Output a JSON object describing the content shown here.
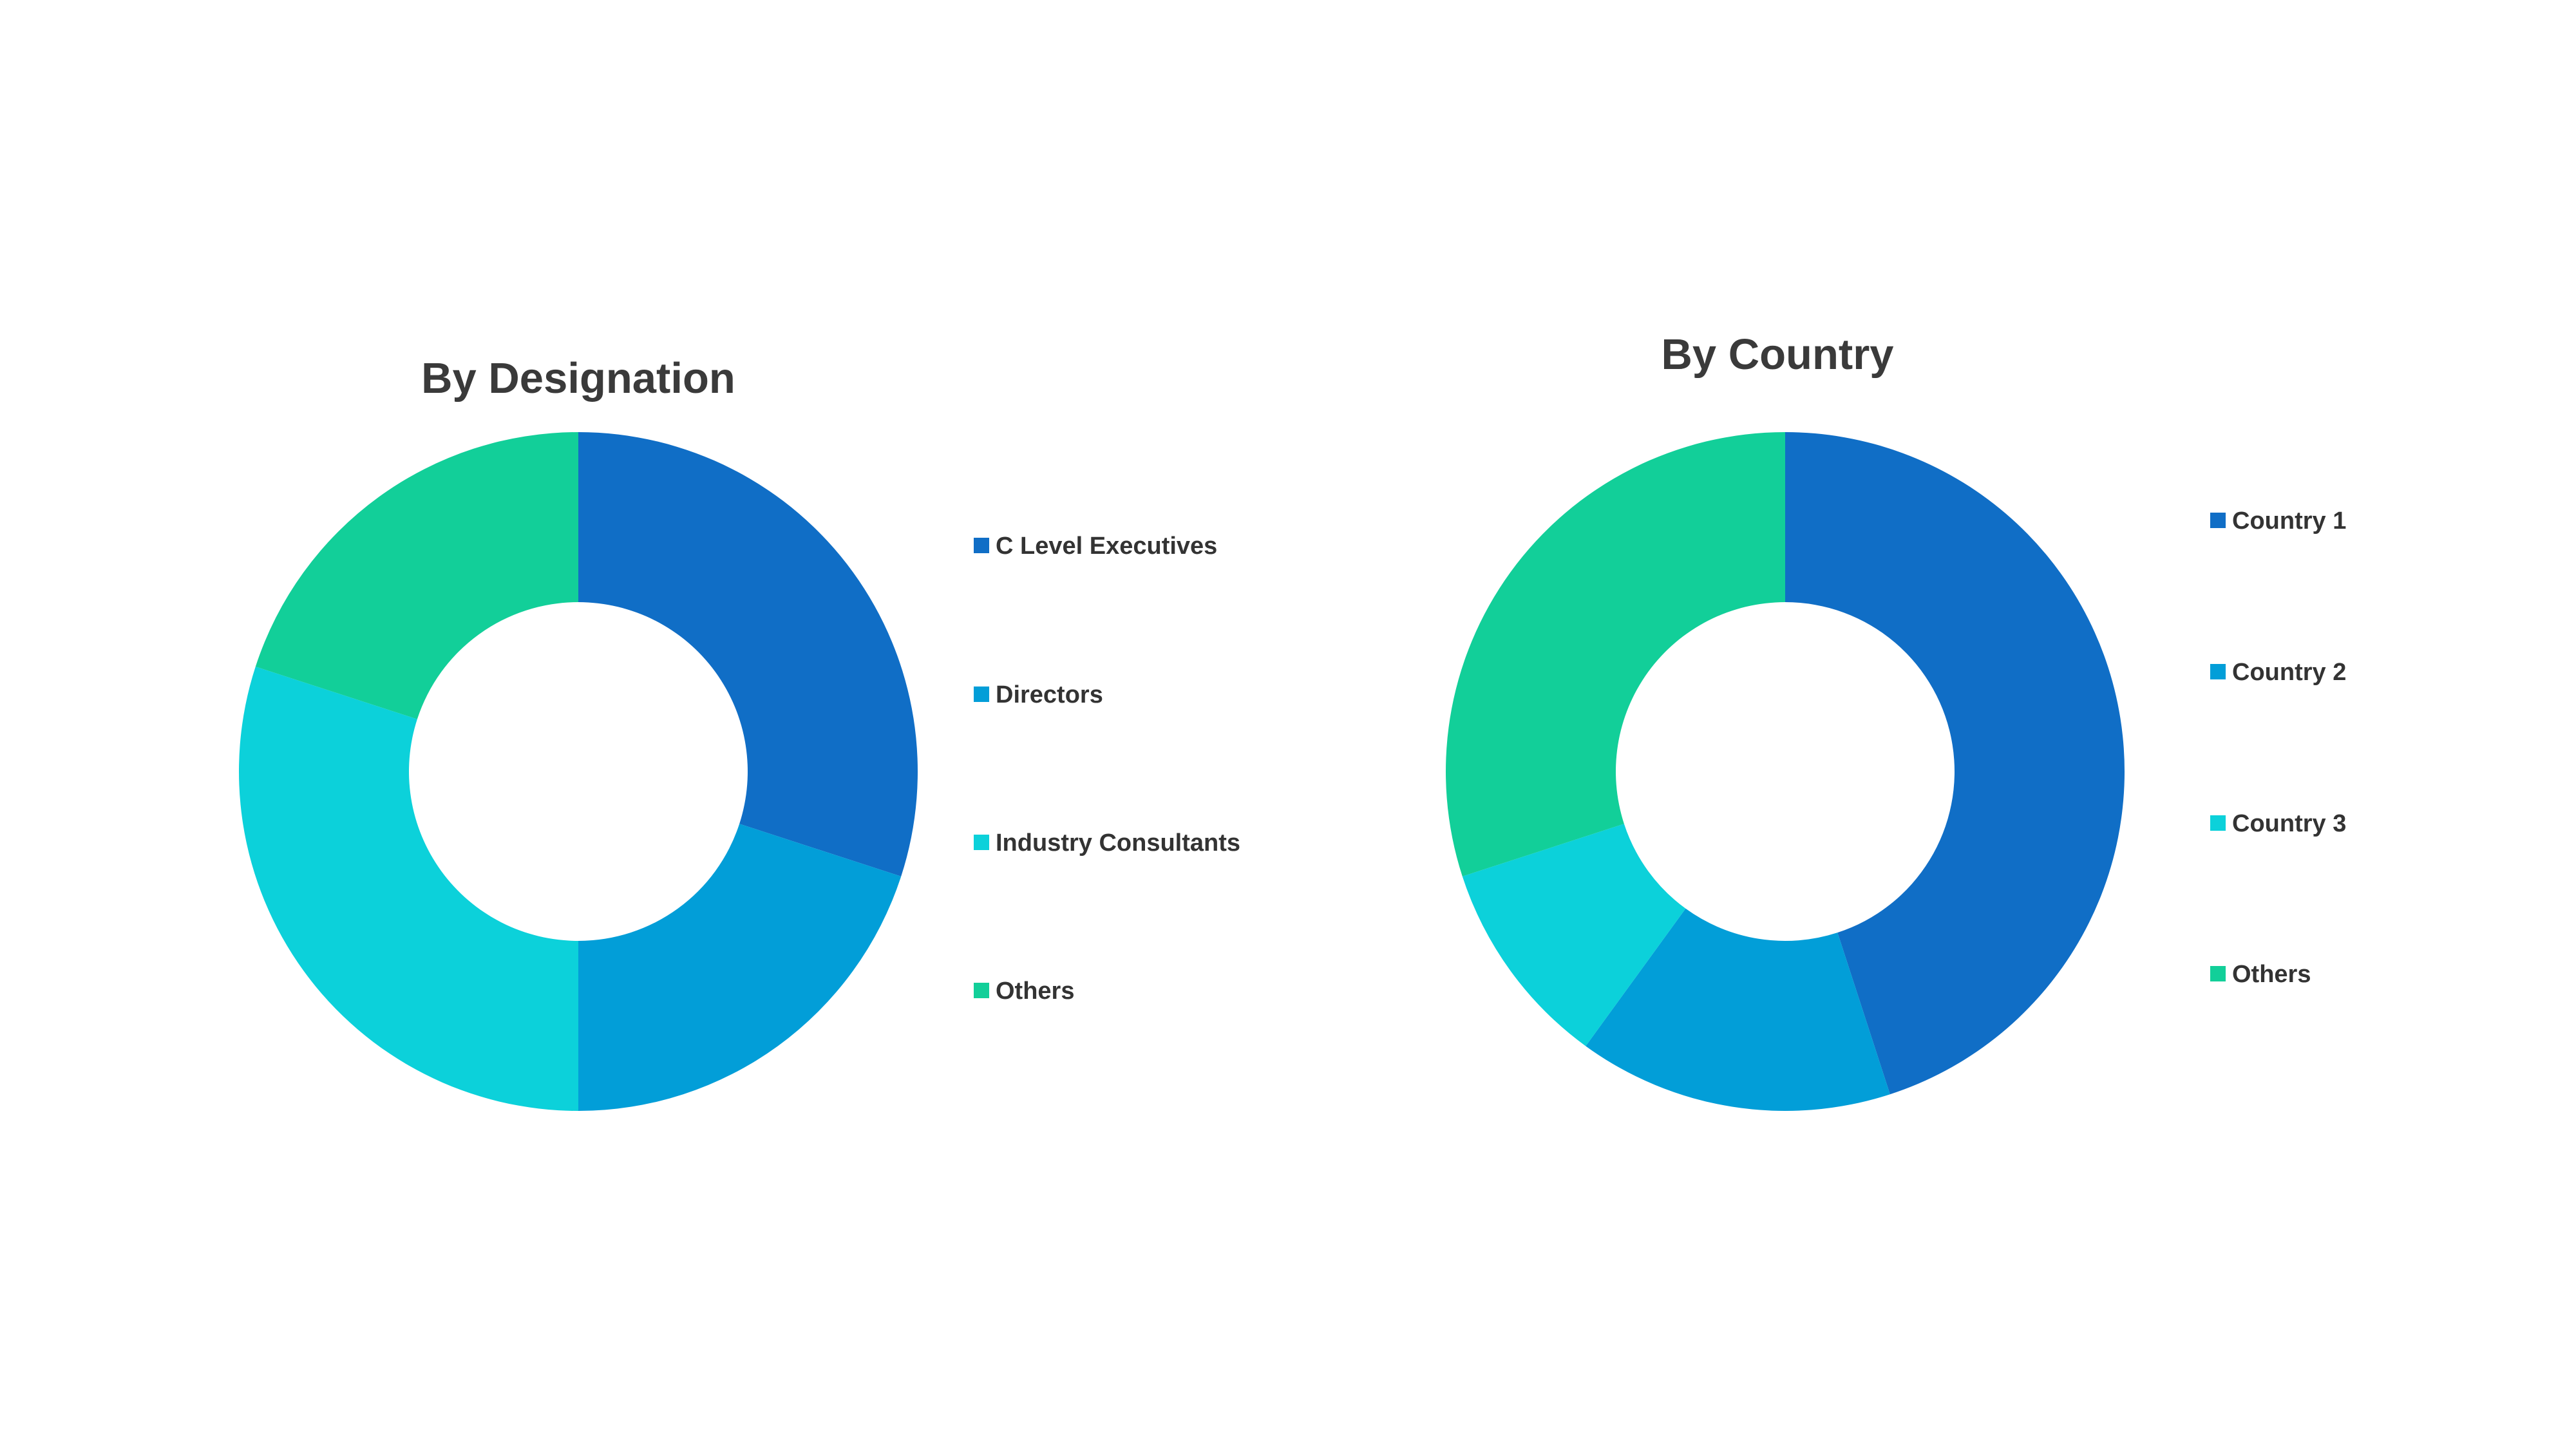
{
  "chart_data": [
    {
      "type": "pie",
      "donut": true,
      "title": "By Designation",
      "legend_position": "right",
      "categories": [
        "C Level Executives",
        "Directors",
        "Industry Consultants",
        "Others"
      ],
      "values": [
        30,
        20,
        30,
        20
      ],
      "colors": [
        "#106EC6",
        "#029ED8",
        "#0CD1DA",
        "#12CF99"
      ]
    },
    {
      "type": "pie",
      "donut": true,
      "title": "By Country",
      "legend_position": "right",
      "categories": [
        "Country 1",
        "Country 2",
        "Country 3",
        "Others"
      ],
      "values": [
        45,
        15,
        10,
        30
      ],
      "colors": [
        "#106EC6",
        "#029ED8",
        "#0CD1DA",
        "#12CF99"
      ]
    }
  ]
}
